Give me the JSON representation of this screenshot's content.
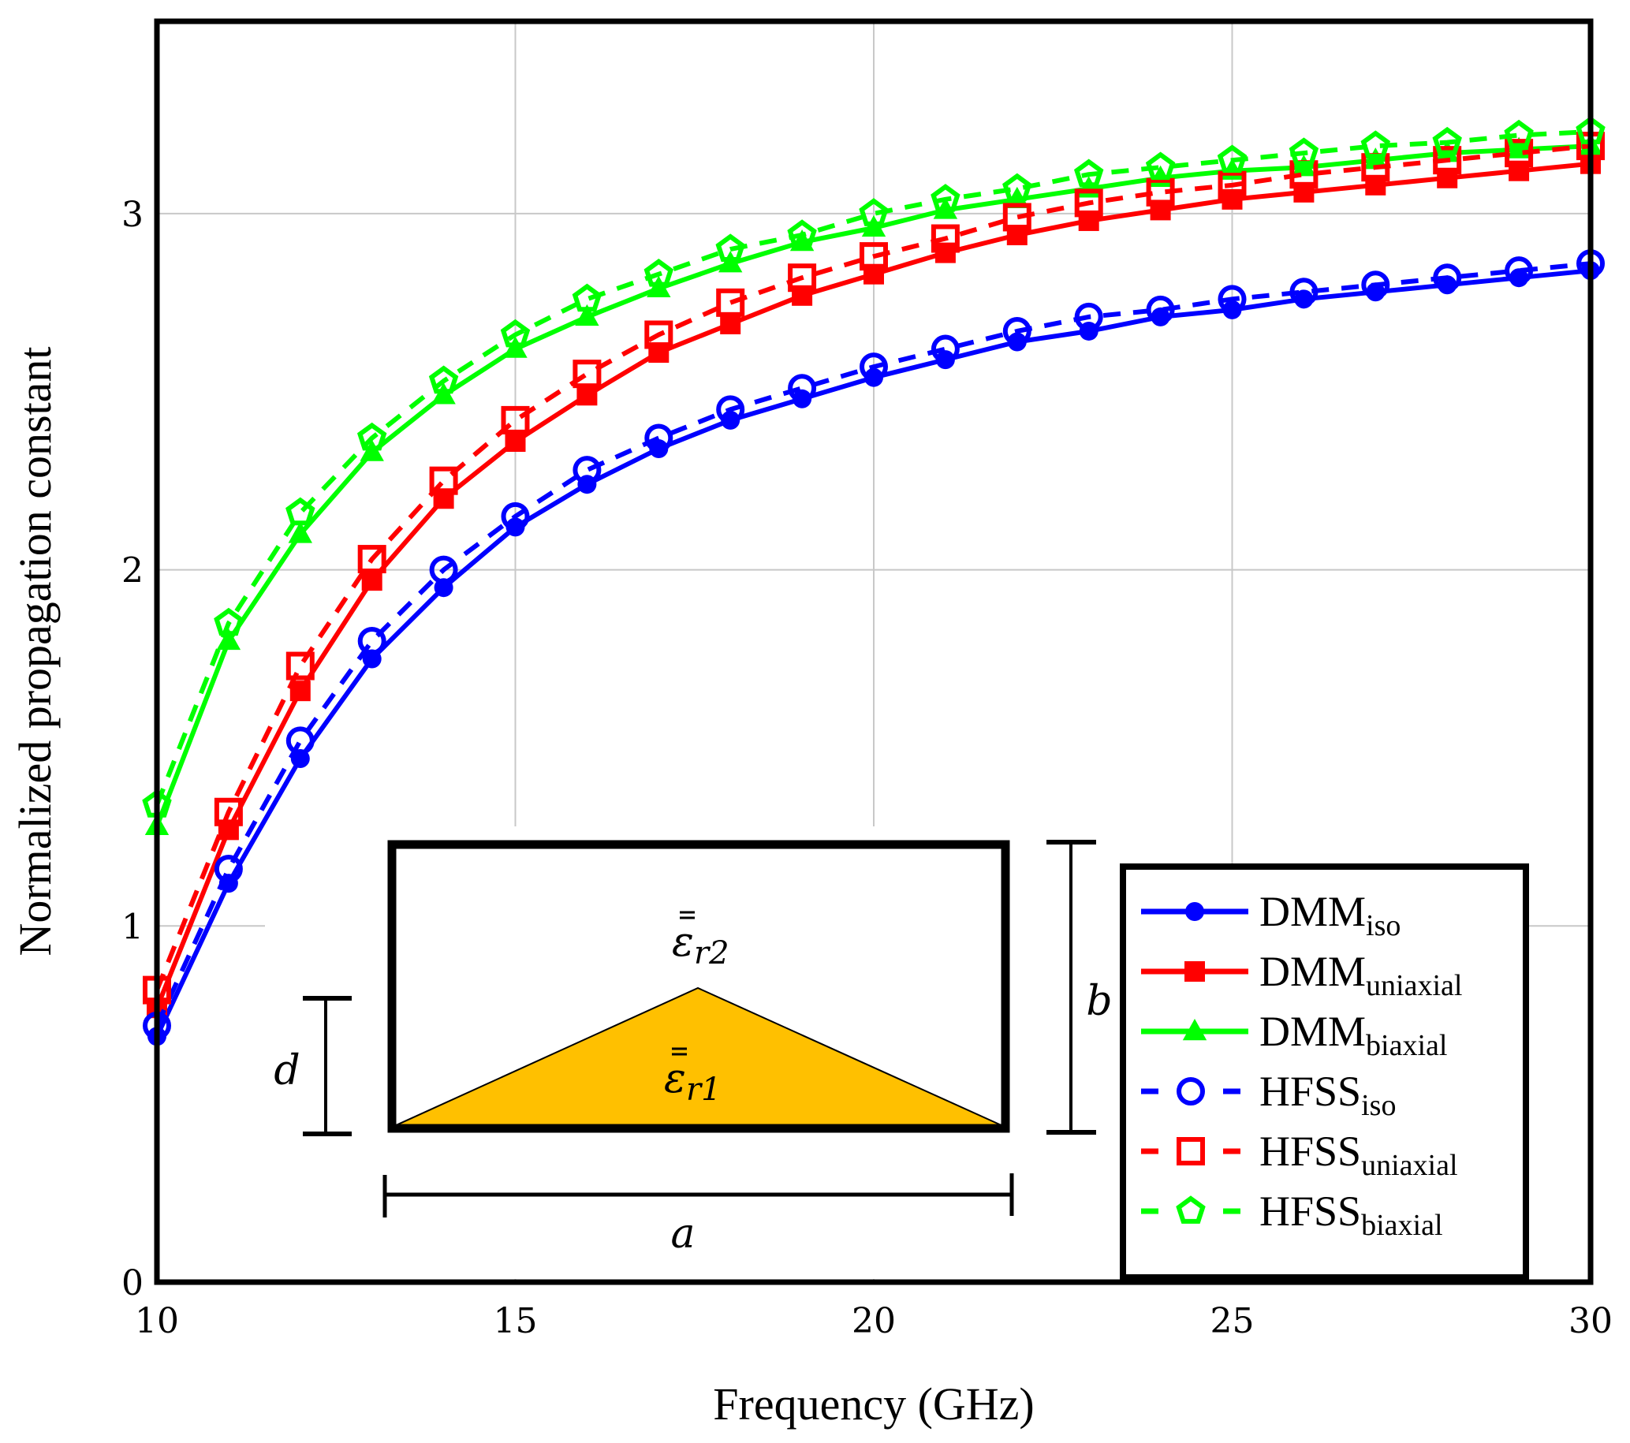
{
  "chart_data": {
    "type": "line",
    "title": "",
    "xlabel": "Frequency (GHz)",
    "ylabel": "Normalized propagation constant",
    "xlim": [
      10,
      30
    ],
    "ylim": [
      0,
      3.54
    ],
    "xticks": [
      10,
      15,
      20,
      25,
      30
    ],
    "yticks": [
      0,
      1,
      2,
      3
    ],
    "xtick_labels": [
      "10",
      "15",
      "20",
      "25",
      "30"
    ],
    "ytick_labels": [
      "0",
      "1",
      "2",
      "3"
    ],
    "grid": true,
    "legend_position": "bottom-right",
    "x": [
      10,
      11,
      12,
      13,
      14,
      15,
      16,
      17,
      18,
      19,
      20,
      21,
      22,
      23,
      24,
      25,
      26,
      27,
      28,
      29,
      30
    ],
    "series": [
      {
        "name": "DMM_iso",
        "label_main": "DMM",
        "label_sub": "iso",
        "color": "#0000ff",
        "dash": false,
        "marker": "filled-circle",
        "values": [
          0.69,
          1.12,
          1.47,
          1.75,
          1.95,
          2.12,
          2.24,
          2.34,
          2.42,
          2.48,
          2.54,
          2.59,
          2.64,
          2.67,
          2.71,
          2.73,
          2.76,
          2.78,
          2.8,
          2.82,
          2.84
        ]
      },
      {
        "name": "DMM_uniaxial",
        "label_main": "DMM",
        "label_sub": "uniaxial",
        "color": "#ff0000",
        "dash": false,
        "marker": "filled-square",
        "values": [
          0.77,
          1.27,
          1.66,
          1.97,
          2.2,
          2.36,
          2.49,
          2.61,
          2.69,
          2.77,
          2.83,
          2.89,
          2.94,
          2.98,
          3.01,
          3.04,
          3.06,
          3.08,
          3.1,
          3.12,
          3.14
        ]
      },
      {
        "name": "DMM_biaxial",
        "label_main": "DMM",
        "label_sub": "biaxial",
        "color": "#00ff00",
        "dash": false,
        "marker": "filled-triangle",
        "values": [
          1.28,
          1.8,
          2.1,
          2.33,
          2.49,
          2.62,
          2.71,
          2.79,
          2.86,
          2.92,
          2.96,
          3.01,
          3.04,
          3.07,
          3.1,
          3.12,
          3.13,
          3.15,
          3.17,
          3.18,
          3.19
        ]
      },
      {
        "name": "HFSS_iso",
        "label_main": "HFSS",
        "label_sub": "iso",
        "color": "#0000ff",
        "dash": true,
        "marker": "open-circle",
        "values": [
          0.72,
          1.16,
          1.52,
          1.8,
          2.0,
          2.15,
          2.28,
          2.37,
          2.45,
          2.51,
          2.57,
          2.62,
          2.67,
          2.71,
          2.73,
          2.76,
          2.78,
          2.8,
          2.82,
          2.84,
          2.86
        ]
      },
      {
        "name": "HFSS_uniaxial",
        "label_main": "HFSS",
        "label_sub": "uniaxial",
        "color": "#ff0000",
        "dash": true,
        "marker": "open-square",
        "values": [
          0.82,
          1.32,
          1.73,
          2.03,
          2.25,
          2.42,
          2.55,
          2.66,
          2.75,
          2.82,
          2.88,
          2.93,
          2.99,
          3.03,
          3.06,
          3.08,
          3.11,
          3.13,
          3.15,
          3.17,
          3.19
        ]
      },
      {
        "name": "HFSS_biaxial",
        "label_main": "HFSS",
        "label_sub": "biaxial",
        "color": "#00ff00",
        "dash": true,
        "marker": "open-pentagon",
        "values": [
          1.34,
          1.85,
          2.16,
          2.37,
          2.53,
          2.66,
          2.76,
          2.83,
          2.9,
          2.94,
          3.0,
          3.04,
          3.07,
          3.11,
          3.13,
          3.15,
          3.17,
          3.19,
          3.2,
          3.22,
          3.23
        ]
      }
    ],
    "inset": {
      "description": "Waveguide cross-section with triangular dielectric",
      "fill_color": "#ffc000",
      "upper_region_label": "ε",
      "upper_region_sub": "r2",
      "lower_region_label": "ε",
      "lower_region_sub": "r1",
      "width_label": "a",
      "height_label": "b",
      "dielectric_height_label": "d"
    }
  }
}
